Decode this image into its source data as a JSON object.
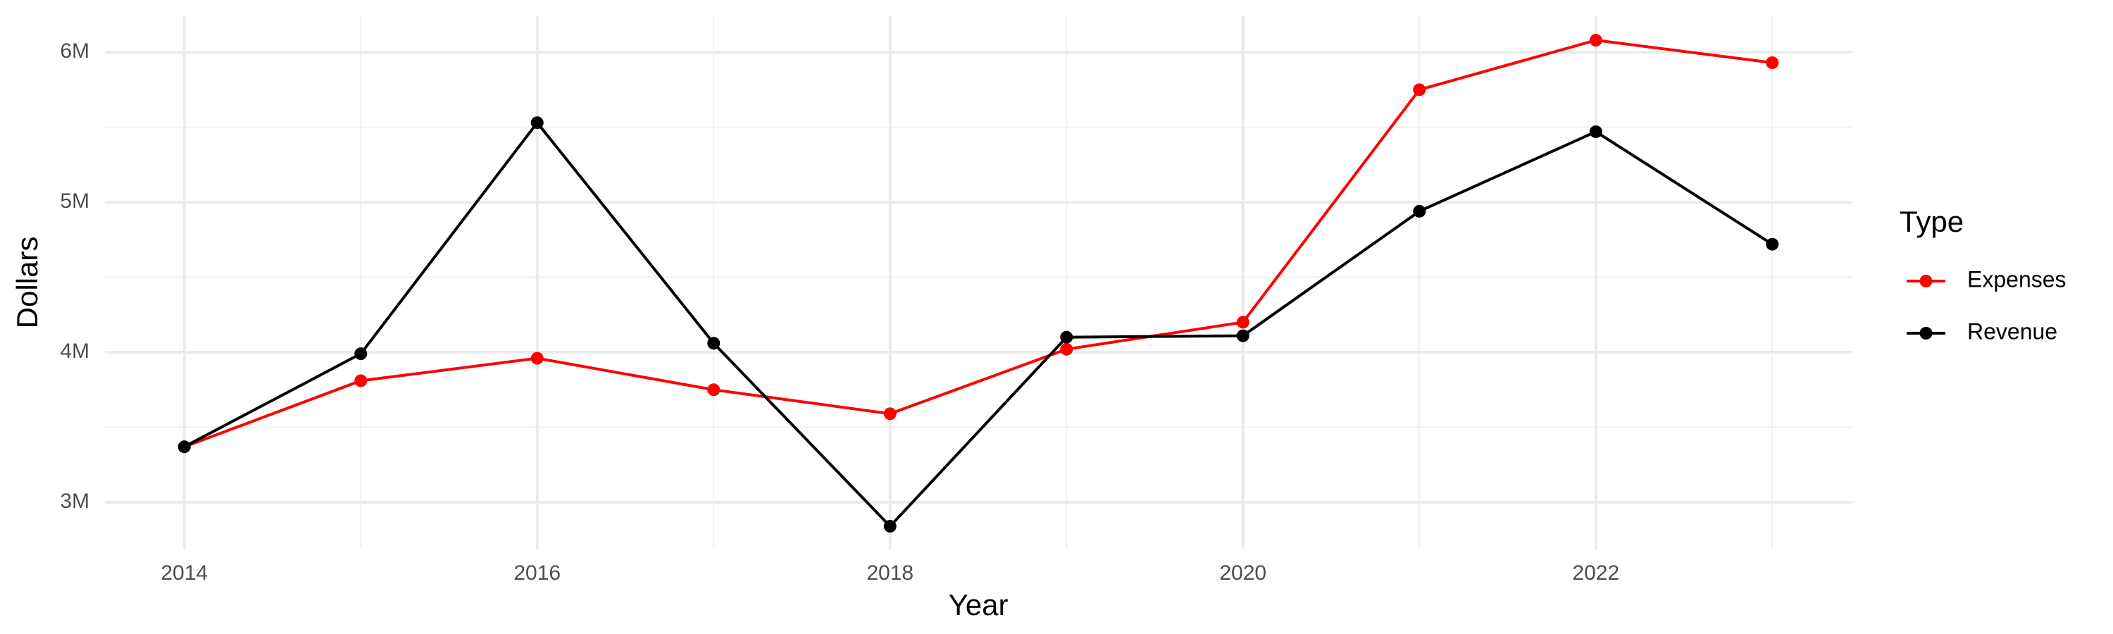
{
  "chart_data": {
    "type": "line",
    "x_label": "Year",
    "y_label": "Dollars",
    "legend_title": "Type",
    "legend_position": "right",
    "grid": true,
    "x": [
      2014,
      2015,
      2016,
      2017,
      2018,
      2019,
      2020,
      2021,
      2022,
      2023
    ],
    "series": [
      {
        "name": "Expenses",
        "color": "#ff0000",
        "values": [
          3370000,
          3810000,
          3960000,
          3750000,
          3590000,
          4020000,
          4200000,
          5750000,
          6080000,
          5930000
        ]
      },
      {
        "name": "Revenue",
        "color": "#000000",
        "values": [
          3370000,
          3990000,
          5530000,
          4060000,
          2840000,
          4100000,
          4110000,
          4940000,
          5470000,
          4720000
        ]
      }
    ],
    "xlim": [
      2013.55,
      2023.45
    ],
    "xticks": [
      2014,
      2016,
      2018,
      2020,
      2022
    ],
    "ylim": [
      2690000,
      6240000
    ],
    "yticks": [
      {
        "value": 3000000,
        "label": "3M"
      },
      {
        "value": 4000000,
        "label": "4M"
      },
      {
        "value": 5000000,
        "label": "5M"
      },
      {
        "value": 6000000,
        "label": "6M"
      }
    ]
  }
}
